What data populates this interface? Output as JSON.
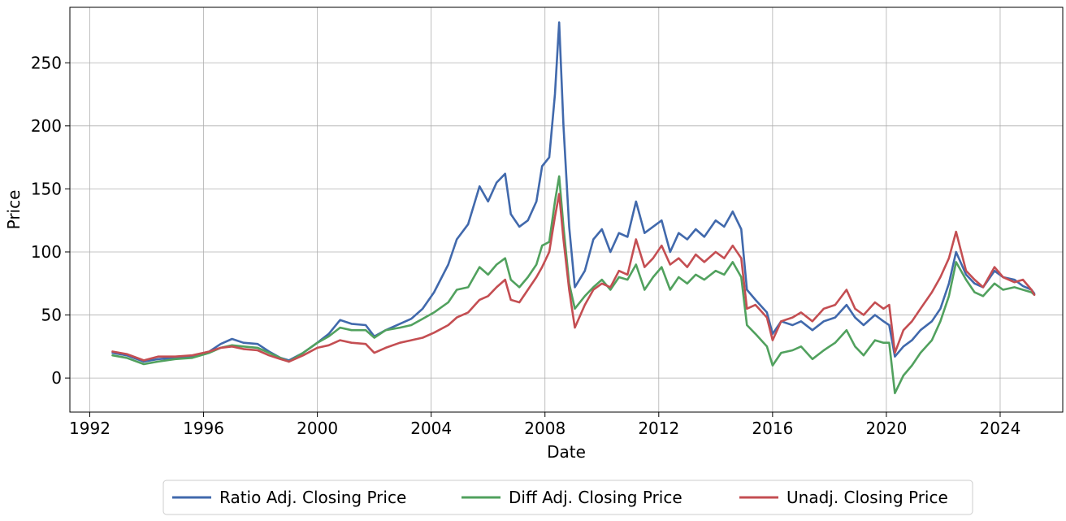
{
  "chart_data": {
    "type": "line",
    "title": "",
    "xlabel": "Date",
    "ylabel": "Price",
    "xlim": [
      1991.3,
      2026.2
    ],
    "ylim": [
      -27,
      294
    ],
    "xticks": [
      1992,
      1996,
      2000,
      2004,
      2008,
      2012,
      2016,
      2020,
      2024
    ],
    "xtick_labels": [
      "1992",
      "1996",
      "2000",
      "2004",
      "2008",
      "2012",
      "2016",
      "2020",
      "2024"
    ],
    "yticks": [
      0,
      50,
      100,
      150,
      200,
      250
    ],
    "ytick_labels": [
      "0",
      "50",
      "100",
      "150",
      "200",
      "250"
    ],
    "grid": true,
    "legend_position": "bottom-center",
    "series": [
      {
        "name": "Ratio Adj. Closing Price",
        "color": "#4169ac",
        "points": [
          [
            1992.8,
            20
          ],
          [
            1993.3,
            18
          ],
          [
            1993.9,
            13
          ],
          [
            1994.4,
            15
          ],
          [
            1995.0,
            16
          ],
          [
            1995.6,
            17
          ],
          [
            1996.2,
            21
          ],
          [
            1996.6,
            27
          ],
          [
            1997.0,
            31
          ],
          [
            1997.4,
            28
          ],
          [
            1997.9,
            27
          ],
          [
            1998.3,
            21
          ],
          [
            1998.7,
            16
          ],
          [
            1999.0,
            14
          ],
          [
            1999.5,
            20
          ],
          [
            2000.0,
            28
          ],
          [
            2000.4,
            35
          ],
          [
            2000.8,
            46
          ],
          [
            2001.2,
            43
          ],
          [
            2001.7,
            42
          ],
          [
            2002.0,
            33
          ],
          [
            2002.4,
            38
          ],
          [
            2002.9,
            43
          ],
          [
            2003.3,
            47
          ],
          [
            2003.7,
            55
          ],
          [
            2004.1,
            68
          ],
          [
            2004.6,
            90
          ],
          [
            2004.9,
            110
          ],
          [
            2005.3,
            122
          ],
          [
            2005.7,
            152
          ],
          [
            2006.0,
            140
          ],
          [
            2006.3,
            155
          ],
          [
            2006.6,
            162
          ],
          [
            2006.8,
            130
          ],
          [
            2007.1,
            120
          ],
          [
            2007.4,
            125
          ],
          [
            2007.7,
            140
          ],
          [
            2007.9,
            168
          ],
          [
            2008.15,
            175
          ],
          [
            2008.35,
            225
          ],
          [
            2008.5,
            282
          ],
          [
            2008.65,
            200
          ],
          [
            2008.85,
            120
          ],
          [
            2009.05,
            72
          ],
          [
            2009.4,
            85
          ],
          [
            2009.7,
            110
          ],
          [
            2010.0,
            118
          ],
          [
            2010.3,
            100
          ],
          [
            2010.6,
            115
          ],
          [
            2010.9,
            112
          ],
          [
            2011.2,
            140
          ],
          [
            2011.5,
            115
          ],
          [
            2011.8,
            120
          ],
          [
            2012.1,
            125
          ],
          [
            2012.4,
            100
          ],
          [
            2012.7,
            115
          ],
          [
            2013.0,
            110
          ],
          [
            2013.3,
            118
          ],
          [
            2013.6,
            112
          ],
          [
            2014.0,
            125
          ],
          [
            2014.3,
            120
          ],
          [
            2014.6,
            132
          ],
          [
            2014.9,
            118
          ],
          [
            2015.1,
            70
          ],
          [
            2015.4,
            62
          ],
          [
            2015.8,
            52
          ],
          [
            2016.0,
            35
          ],
          [
            2016.3,
            45
          ],
          [
            2016.7,
            42
          ],
          [
            2017.0,
            45
          ],
          [
            2017.4,
            38
          ],
          [
            2017.8,
            45
          ],
          [
            2018.2,
            48
          ],
          [
            2018.6,
            58
          ],
          [
            2018.9,
            48
          ],
          [
            2019.2,
            42
          ],
          [
            2019.6,
            50
          ],
          [
            2019.9,
            45
          ],
          [
            2020.1,
            42
          ],
          [
            2020.3,
            17
          ],
          [
            2020.6,
            25
          ],
          [
            2020.9,
            30
          ],
          [
            2021.2,
            38
          ],
          [
            2021.6,
            45
          ],
          [
            2021.9,
            55
          ],
          [
            2022.2,
            75
          ],
          [
            2022.45,
            100
          ],
          [
            2022.8,
            82
          ],
          [
            2023.1,
            75
          ],
          [
            2023.4,
            72
          ],
          [
            2023.8,
            85
          ],
          [
            2024.1,
            80
          ],
          [
            2024.5,
            78
          ],
          [
            2024.8,
            73
          ],
          [
            2025.1,
            70
          ],
          [
            2025.2,
            67
          ]
        ]
      },
      {
        "name": "Diff Adj. Closing Price",
        "color": "#51a15e",
        "points": [
          [
            1992.8,
            18
          ],
          [
            1993.3,
            16
          ],
          [
            1993.9,
            11
          ],
          [
            1994.4,
            13
          ],
          [
            1995.0,
            15
          ],
          [
            1995.6,
            16
          ],
          [
            1996.2,
            20
          ],
          [
            1996.6,
            24
          ],
          [
            1997.0,
            26
          ],
          [
            1997.4,
            25
          ],
          [
            1997.9,
            24
          ],
          [
            1998.3,
            20
          ],
          [
            1998.7,
            16
          ],
          [
            1999.0,
            13
          ],
          [
            1999.5,
            20
          ],
          [
            2000.0,
            28
          ],
          [
            2000.4,
            33
          ],
          [
            2000.8,
            40
          ],
          [
            2001.2,
            38
          ],
          [
            2001.7,
            38
          ],
          [
            2002.0,
            32
          ],
          [
            2002.4,
            38
          ],
          [
            2002.9,
            40
          ],
          [
            2003.3,
            42
          ],
          [
            2003.7,
            47
          ],
          [
            2004.1,
            52
          ],
          [
            2004.6,
            60
          ],
          [
            2004.9,
            70
          ],
          [
            2005.3,
            72
          ],
          [
            2005.7,
            88
          ],
          [
            2006.0,
            82
          ],
          [
            2006.3,
            90
          ],
          [
            2006.6,
            95
          ],
          [
            2006.8,
            78
          ],
          [
            2007.1,
            72
          ],
          [
            2007.4,
            80
          ],
          [
            2007.7,
            90
          ],
          [
            2007.9,
            105
          ],
          [
            2008.15,
            108
          ],
          [
            2008.35,
            140
          ],
          [
            2008.5,
            160
          ],
          [
            2008.65,
            120
          ],
          [
            2008.85,
            75
          ],
          [
            2009.05,
            55
          ],
          [
            2009.4,
            65
          ],
          [
            2009.7,
            72
          ],
          [
            2010.0,
            78
          ],
          [
            2010.3,
            70
          ],
          [
            2010.6,
            80
          ],
          [
            2010.9,
            78
          ],
          [
            2011.2,
            90
          ],
          [
            2011.5,
            70
          ],
          [
            2011.8,
            80
          ],
          [
            2012.1,
            88
          ],
          [
            2012.4,
            70
          ],
          [
            2012.7,
            80
          ],
          [
            2013.0,
            75
          ],
          [
            2013.3,
            82
          ],
          [
            2013.6,
            78
          ],
          [
            2014.0,
            85
          ],
          [
            2014.3,
            82
          ],
          [
            2014.6,
            92
          ],
          [
            2014.9,
            80
          ],
          [
            2015.1,
            42
          ],
          [
            2015.4,
            35
          ],
          [
            2015.8,
            25
          ],
          [
            2016.0,
            10
          ],
          [
            2016.3,
            20
          ],
          [
            2016.7,
            22
          ],
          [
            2017.0,
            25
          ],
          [
            2017.4,
            15
          ],
          [
            2017.8,
            22
          ],
          [
            2018.2,
            28
          ],
          [
            2018.6,
            38
          ],
          [
            2018.9,
            25
          ],
          [
            2019.2,
            18
          ],
          [
            2019.6,
            30
          ],
          [
            2019.9,
            28
          ],
          [
            2020.1,
            28
          ],
          [
            2020.3,
            -12
          ],
          [
            2020.6,
            2
          ],
          [
            2020.9,
            10
          ],
          [
            2021.2,
            20
          ],
          [
            2021.6,
            30
          ],
          [
            2021.9,
            45
          ],
          [
            2022.2,
            65
          ],
          [
            2022.45,
            92
          ],
          [
            2022.8,
            78
          ],
          [
            2023.1,
            68
          ],
          [
            2023.4,
            65
          ],
          [
            2023.8,
            75
          ],
          [
            2024.1,
            70
          ],
          [
            2024.5,
            72
          ],
          [
            2024.8,
            70
          ],
          [
            2025.1,
            68
          ],
          [
            2025.2,
            66
          ]
        ]
      },
      {
        "name": "Unadj. Closing Price",
        "color": "#c44e52",
        "points": [
          [
            1992.8,
            21
          ],
          [
            1993.3,
            19
          ],
          [
            1993.9,
            14
          ],
          [
            1994.4,
            17
          ],
          [
            1995.0,
            17
          ],
          [
            1995.6,
            18
          ],
          [
            1996.2,
            21
          ],
          [
            1996.6,
            24
          ],
          [
            1997.0,
            25
          ],
          [
            1997.4,
            23
          ],
          [
            1997.9,
            22
          ],
          [
            1998.3,
            18
          ],
          [
            1998.7,
            15
          ],
          [
            1999.0,
            13
          ],
          [
            1999.5,
            18
          ],
          [
            2000.0,
            24
          ],
          [
            2000.4,
            26
          ],
          [
            2000.8,
            30
          ],
          [
            2001.2,
            28
          ],
          [
            2001.7,
            27
          ],
          [
            2002.0,
            20
          ],
          [
            2002.4,
            24
          ],
          [
            2002.9,
            28
          ],
          [
            2003.3,
            30
          ],
          [
            2003.7,
            32
          ],
          [
            2004.1,
            36
          ],
          [
            2004.6,
            42
          ],
          [
            2004.9,
            48
          ],
          [
            2005.3,
            52
          ],
          [
            2005.7,
            62
          ],
          [
            2006.0,
            65
          ],
          [
            2006.3,
            72
          ],
          [
            2006.6,
            78
          ],
          [
            2006.8,
            62
          ],
          [
            2007.1,
            60
          ],
          [
            2007.4,
            70
          ],
          [
            2007.7,
            80
          ],
          [
            2007.9,
            88
          ],
          [
            2008.15,
            100
          ],
          [
            2008.35,
            128
          ],
          [
            2008.5,
            146
          ],
          [
            2008.65,
            110
          ],
          [
            2008.85,
            70
          ],
          [
            2009.05,
            40
          ],
          [
            2009.4,
            58
          ],
          [
            2009.7,
            70
          ],
          [
            2010.0,
            75
          ],
          [
            2010.3,
            72
          ],
          [
            2010.6,
            85
          ],
          [
            2010.9,
            82
          ],
          [
            2011.2,
            110
          ],
          [
            2011.5,
            88
          ],
          [
            2011.8,
            95
          ],
          [
            2012.1,
            105
          ],
          [
            2012.4,
            90
          ],
          [
            2012.7,
            95
          ],
          [
            2013.0,
            88
          ],
          [
            2013.3,
            98
          ],
          [
            2013.6,
            92
          ],
          [
            2014.0,
            100
          ],
          [
            2014.3,
            95
          ],
          [
            2014.6,
            105
          ],
          [
            2014.9,
            95
          ],
          [
            2015.1,
            55
          ],
          [
            2015.4,
            58
          ],
          [
            2015.8,
            48
          ],
          [
            2016.0,
            30
          ],
          [
            2016.3,
            45
          ],
          [
            2016.7,
            48
          ],
          [
            2017.0,
            52
          ],
          [
            2017.4,
            45
          ],
          [
            2017.8,
            55
          ],
          [
            2018.2,
            58
          ],
          [
            2018.6,
            70
          ],
          [
            2018.9,
            55
          ],
          [
            2019.2,
            50
          ],
          [
            2019.6,
            60
          ],
          [
            2019.9,
            55
          ],
          [
            2020.1,
            58
          ],
          [
            2020.3,
            20
          ],
          [
            2020.6,
            38
          ],
          [
            2020.9,
            45
          ],
          [
            2021.2,
            55
          ],
          [
            2021.6,
            68
          ],
          [
            2021.9,
            80
          ],
          [
            2022.2,
            95
          ],
          [
            2022.45,
            116
          ],
          [
            2022.8,
            85
          ],
          [
            2023.1,
            78
          ],
          [
            2023.4,
            72
          ],
          [
            2023.8,
            88
          ],
          [
            2024.1,
            80
          ],
          [
            2024.5,
            76
          ],
          [
            2024.8,
            78
          ],
          [
            2025.1,
            70
          ],
          [
            2025.2,
            66
          ]
        ]
      }
    ]
  }
}
